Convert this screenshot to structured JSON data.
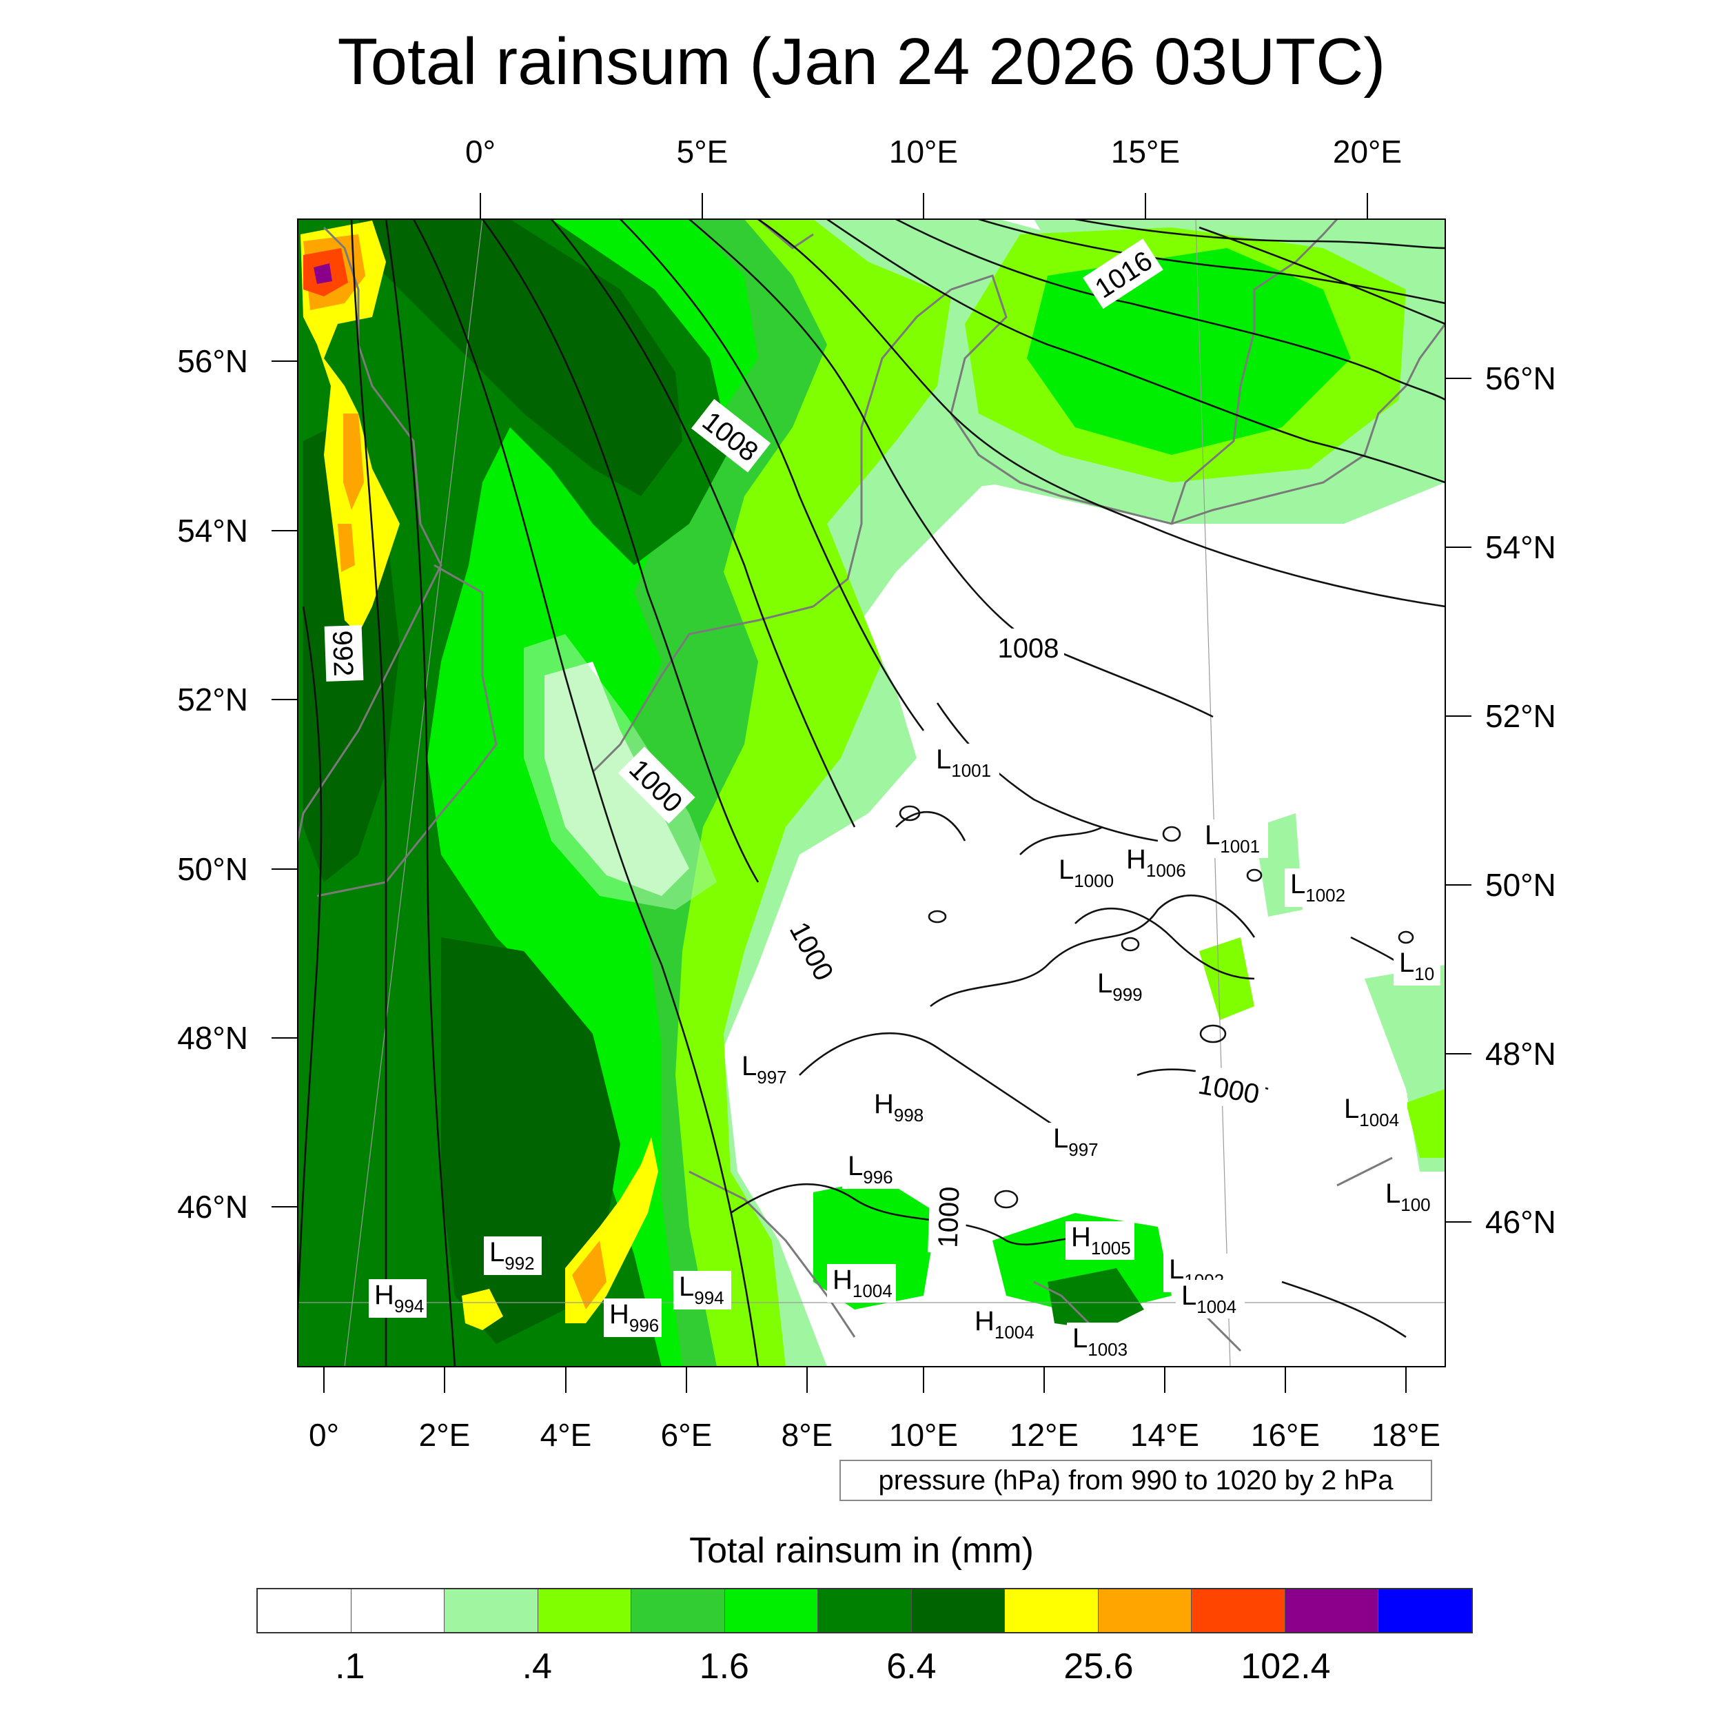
{
  "title": "Total rainsum (Jan 24 2026 03UTC)",
  "top_lon_labels": [
    "0°",
    "5°E",
    "10°E",
    "15°E",
    "20°E"
  ],
  "bottom_lon_labels": [
    "0°",
    "2°E",
    "4°E",
    "6°E",
    "8°E",
    "10°E",
    "12°E",
    "14°E",
    "16°E",
    "18°E"
  ],
  "left_lat_labels": [
    "56°N",
    "54°N",
    "52°N",
    "50°N",
    "48°N",
    "46°N"
  ],
  "right_lat_labels": [
    "56°N",
    "54°N",
    "52°N",
    "50°N",
    "48°N",
    "46°N"
  ],
  "isobar_labels": [
    "1016",
    "1008",
    "1008",
    "992",
    "1000",
    "1000",
    "1000",
    "1000"
  ],
  "pressure_centers": [
    {
      "letter": "L",
      "value": "1001"
    },
    {
      "letter": "L",
      "value": "1001"
    },
    {
      "letter": "H",
      "value": "1006"
    },
    {
      "letter": "L",
      "value": "1000"
    },
    {
      "letter": "L",
      "value": "1002"
    },
    {
      "letter": "L",
      "value": "10"
    },
    {
      "letter": "L",
      "value": "999"
    },
    {
      "letter": "L",
      "value": "997"
    },
    {
      "letter": "H",
      "value": "998"
    },
    {
      "letter": "L",
      "value": "997"
    },
    {
      "letter": "L",
      "value": "1004"
    },
    {
      "letter": "L",
      "value": "996"
    },
    {
      "letter": "L",
      "value": "100"
    },
    {
      "letter": "H",
      "value": "1005"
    },
    {
      "letter": "L",
      "value": "992"
    },
    {
      "letter": "H",
      "value": "994"
    },
    {
      "letter": "H",
      "value": "996"
    },
    {
      "letter": "L",
      "value": "994"
    },
    {
      "letter": "H",
      "value": "1004"
    },
    {
      "letter": "L",
      "value": "1002"
    },
    {
      "letter": "L",
      "value": "1004"
    },
    {
      "letter": "H",
      "value": "1004"
    },
    {
      "letter": "L",
      "value": "1003"
    }
  ],
  "info_text": "pressure (hPa) from 990 to 1020 by 2 hPa",
  "colorbar": {
    "title": "Total rainsum in (mm)",
    "colors": [
      "#ffffff",
      "#ffffff",
      "#a0f5a0",
      "#80ff00",
      "#32cd32",
      "#00ee00",
      "#008000",
      "#006400",
      "#ffff00",
      "#ffa500",
      "#ff4500",
      "#8b008b",
      "#0000ff"
    ],
    "labels": [
      ".1",
      ".4",
      "1.6",
      "6.4",
      "25.6",
      "102.4"
    ]
  }
}
